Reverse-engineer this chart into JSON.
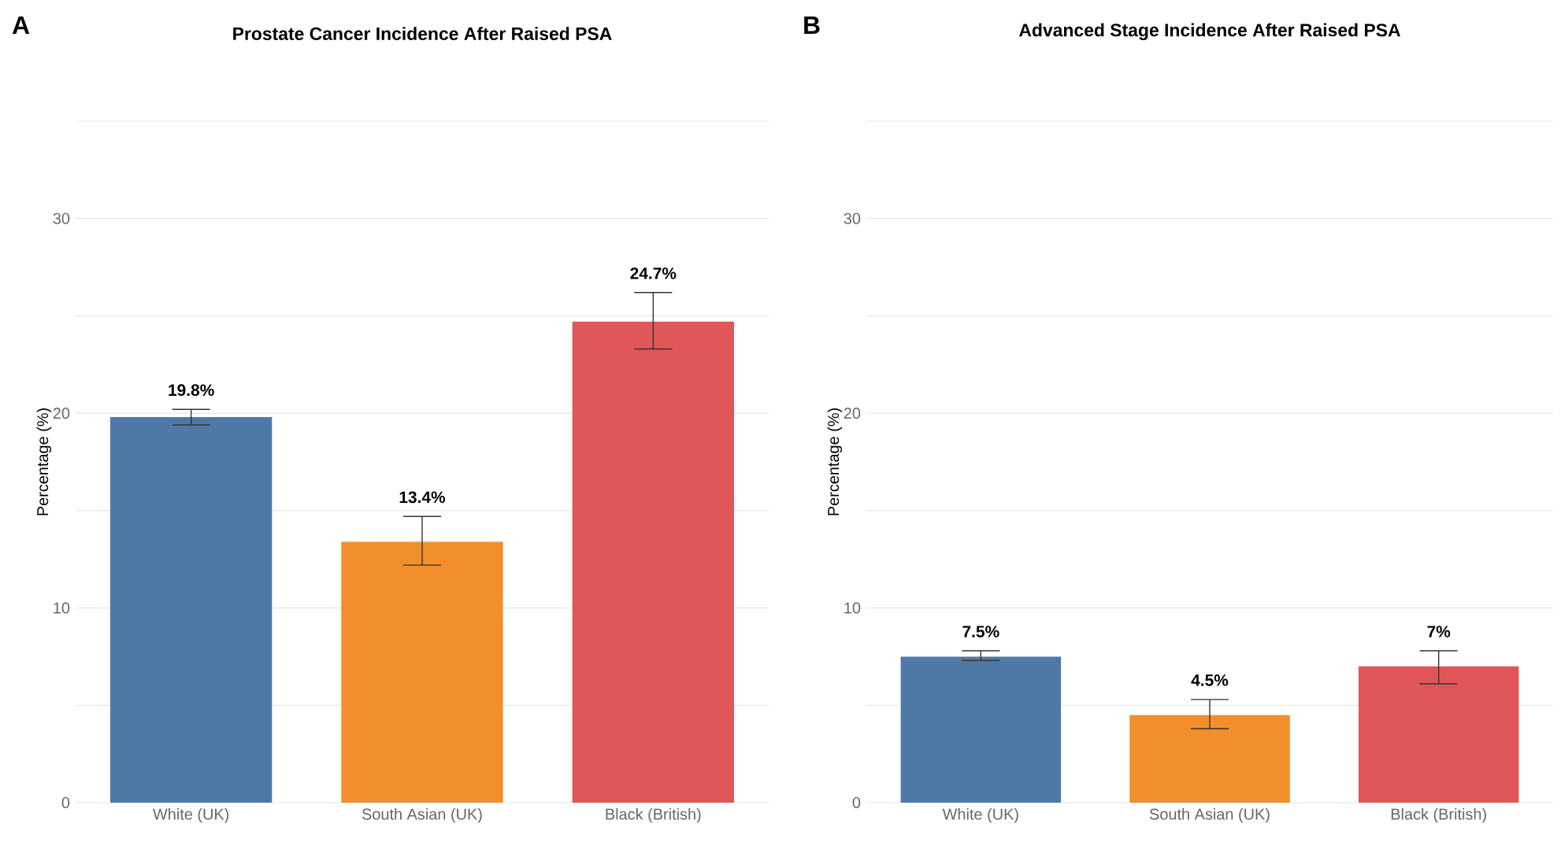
{
  "chart_data": [
    {
      "type": "bar",
      "title": "Prostate Cancer Incidence After Raised PSA",
      "ylabel": "Percentage (%)",
      "annotations": [
        "A"
      ],
      "categories": [
        "White (UK)",
        "South Asian (UK)",
        "Black (British)"
      ],
      "values": [
        19.8,
        13.4,
        24.7
      ],
      "colors": [
        "#4e79a7",
        "#f28e2b",
        "#e15759"
      ],
      "errors": [
        [
          19.4,
          20.2
        ],
        [
          12.2,
          14.7
        ],
        [
          23.3,
          26.2
        ]
      ],
      "value_labels": [
        "19.8%",
        "13.4%",
        "24.7%"
      ],
      "ylim": [
        0,
        35
      ],
      "yticks": [
        0,
        {
          "value": 5,
          "label": null
        },
        10,
        {
          "value": 15,
          "label": null
        },
        20,
        {
          "value": 25,
          "label": null
        },
        30,
        {
          "value": 35,
          "label": null
        }
      ],
      "grid": "y"
    },
    {
      "type": "bar",
      "title": "Advanced Stage Incidence After Raised PSA",
      "ylabel": "Percentage (%)",
      "annotations": [
        "B"
      ],
      "categories": [
        "White (UK)",
        "South Asian (UK)",
        "Black (British)"
      ],
      "values": [
        7.5,
        4.5,
        7
      ],
      "colors": [
        "#4e79a7",
        "#f28e2b",
        "#e15759"
      ],
      "errors": [
        [
          7.3,
          7.8
        ],
        [
          3.8,
          5.3
        ],
        [
          6.1,
          7.8
        ]
      ],
      "value_labels": [
        "7.5%",
        "4.5%",
        "7%"
      ],
      "ylim": [
        0,
        35
      ],
      "yticks": [
        0,
        {
          "value": 5,
          "label": null
        },
        10,
        {
          "value": 15,
          "label": null
        },
        20,
        {
          "value": 25,
          "label": null
        },
        30,
        {
          "value": 35,
          "label": null
        }
      ],
      "grid": "y"
    }
  ]
}
